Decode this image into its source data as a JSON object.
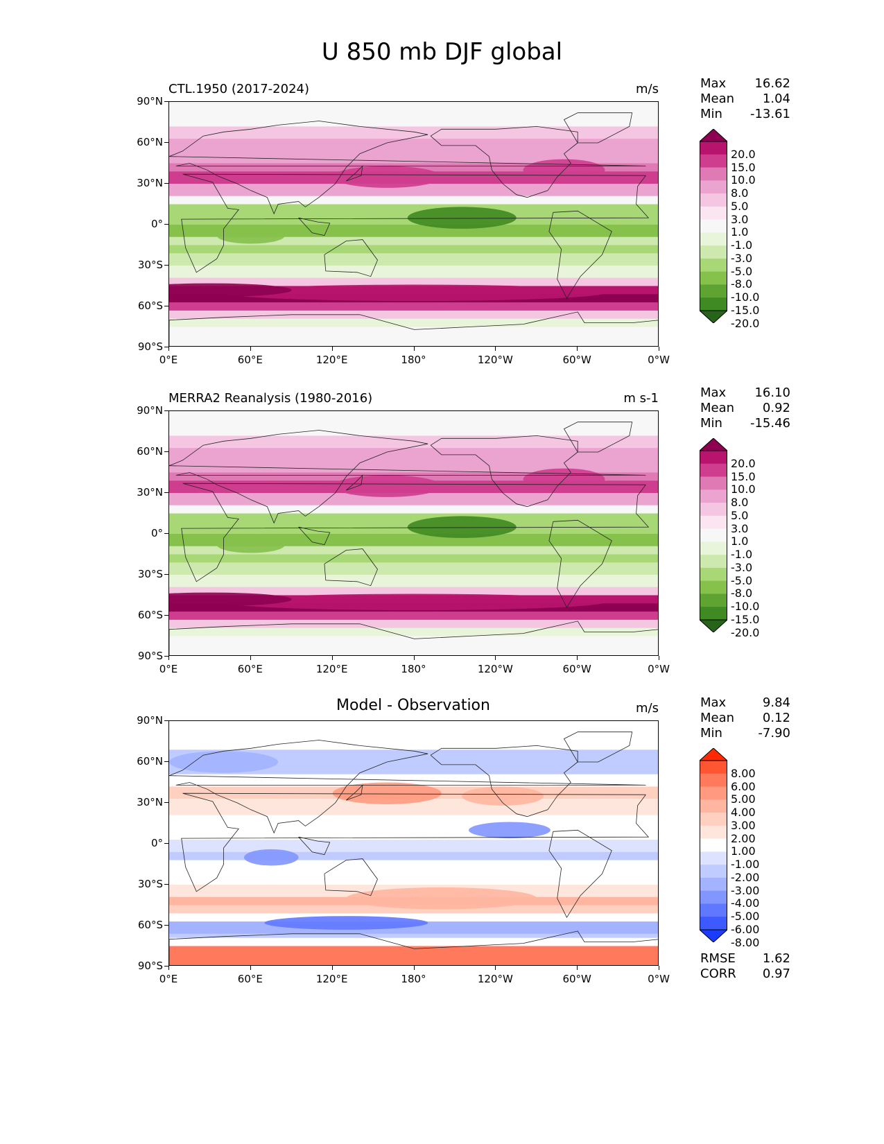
{
  "title": "U 850 mb DJF global",
  "panels": [
    {
      "id": "model",
      "title": "CTL.1950 (2017-2024)",
      "title_centered": false,
      "units": "m/s",
      "stats": [
        {
          "label": "Max",
          "value": "16.62"
        },
        {
          "label": "Mean",
          "value": "1.04"
        },
        {
          "label": "Min",
          "value": "-13.61"
        }
      ],
      "colorbar": {
        "labels": [
          "20.0",
          "15.0",
          "10.0",
          "8.0",
          "5.0",
          "3.0",
          "1.0",
          "-1.0",
          "-3.0",
          "-5.0",
          "-8.0",
          "-10.0",
          "-15.0",
          "-20.0"
        ],
        "colors": [
          "#8e0152",
          "#b8146e",
          "#cf3d8e",
          "#e07ab4",
          "#eba3cf",
          "#f4c6e2",
          "#fae5f1",
          "#f7f7f7",
          "#e9f5da",
          "#cde9ad",
          "#a8d876",
          "#85c14b",
          "#5fa332",
          "#3f8a22",
          "#276419"
        ]
      }
    },
    {
      "id": "obs",
      "title": "MERRA2 Reanalysis (1980-2016)",
      "title_centered": false,
      "units": "m s-1",
      "stats": [
        {
          "label": "Max",
          "value": "16.10"
        },
        {
          "label": "Mean",
          "value": "0.92"
        },
        {
          "label": "Min",
          "value": "-15.46"
        }
      ],
      "colorbar": {
        "labels": [
          "20.0",
          "15.0",
          "10.0",
          "8.0",
          "5.0",
          "3.0",
          "1.0",
          "-1.0",
          "-3.0",
          "-5.0",
          "-8.0",
          "-10.0",
          "-15.0",
          "-20.0"
        ],
        "colors": [
          "#8e0152",
          "#b8146e",
          "#cf3d8e",
          "#e07ab4",
          "#eba3cf",
          "#f4c6e2",
          "#fae5f1",
          "#f7f7f7",
          "#e9f5da",
          "#cde9ad",
          "#a8d876",
          "#85c14b",
          "#5fa332",
          "#3f8a22",
          "#276419"
        ]
      }
    },
    {
      "id": "diff",
      "title": "Model - Observation",
      "title_centered": true,
      "units": "m/s",
      "stats": [
        {
          "label": "Max",
          "value": "9.84"
        },
        {
          "label": "Mean",
          "value": "0.12"
        },
        {
          "label": "Min",
          "value": "-7.90"
        }
      ],
      "extra_stats": [
        {
          "label": "RMSE",
          "value": "1.62"
        },
        {
          "label": "CORR",
          "value": "0.97"
        }
      ],
      "colorbar": {
        "labels": [
          "8.00",
          "6.00",
          "5.00",
          "4.00",
          "3.00",
          "2.00",
          "1.00",
          "-1.00",
          "-2.00",
          "-3.00",
          "-4.00",
          "-5.00",
          "-6.00",
          "-8.00"
        ],
        "colors": [
          "#ff2a00",
          "#ff5533",
          "#ff7a5c",
          "#ff9a80",
          "#ffb6a0",
          "#ffcfc0",
          "#ffe6dd",
          "#ffffff",
          "#dde3ff",
          "#c0ccff",
          "#a3b3ff",
          "#8296ff",
          "#5f78ff",
          "#3c5aff",
          "#1b3cff"
        ]
      }
    }
  ],
  "lat_labels": [
    "90°N",
    "60°N",
    "30°N",
    "0°",
    "30°S",
    "60°S",
    "90°S"
  ],
  "lon_labels": [
    "0°E",
    "60°E",
    "120°E",
    "180°",
    "120°W",
    "60°W",
    "0°W"
  ]
}
